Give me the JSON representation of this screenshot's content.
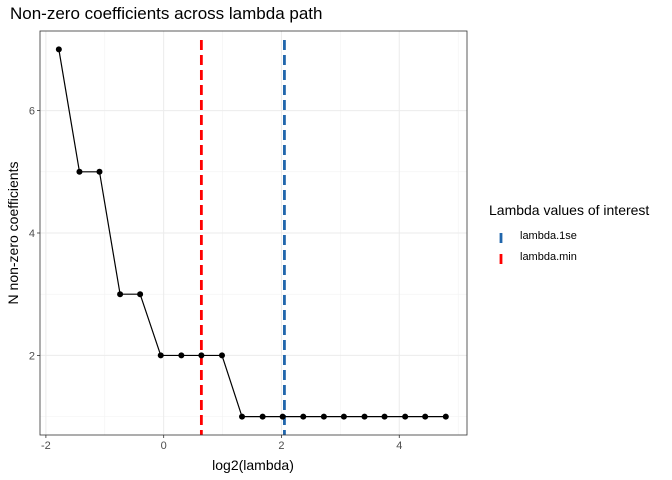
{
  "chart_data": {
    "type": "line",
    "title": "Non-zero coefficients across lambda path",
    "xlabel": "log2(lambda)",
    "ylabel": "N non-zero coefficients",
    "xlim": [
      -2.1,
      5.15
    ],
    "ylim": [
      0.7,
      7.3
    ],
    "x_ticks": [
      -2,
      0,
      2,
      4
    ],
    "x_tick_labels": [
      "-2",
      "0",
      "2",
      "4"
    ],
    "y_ticks": [
      2,
      4,
      6
    ],
    "y_tick_labels": [
      "2",
      "4",
      "6"
    ],
    "grid": true,
    "series": [
      {
        "x": [
          -1.78,
          -1.43,
          -1.09,
          -0.74,
          -0.4,
          -0.05,
          0.3,
          0.64,
          0.99,
          1.33,
          1.68,
          2.02,
          2.37,
          2.72,
          3.06,
          3.41,
          3.75,
          4.1,
          4.44,
          4.79
        ],
        "y": [
          7,
          5,
          5,
          3,
          3,
          2,
          2,
          2,
          2,
          1,
          1,
          1,
          1,
          1,
          1,
          1,
          1,
          1,
          1,
          1
        ],
        "color": "#000000"
      }
    ],
    "vlines": [
      {
        "name": "lambda.min",
        "x": 0.64,
        "color": "#ff0000",
        "style": "dashed"
      },
      {
        "name": "lambda.1se",
        "x": 2.05,
        "color": "#2166ac",
        "style": "dashed"
      }
    ],
    "legend": {
      "title": "Lambda values of interest",
      "position": "right",
      "entries": [
        {
          "label": "lambda.1se",
          "color": "#2166ac"
        },
        {
          "label": "lambda.min",
          "color": "#ff0000"
        }
      ]
    }
  }
}
